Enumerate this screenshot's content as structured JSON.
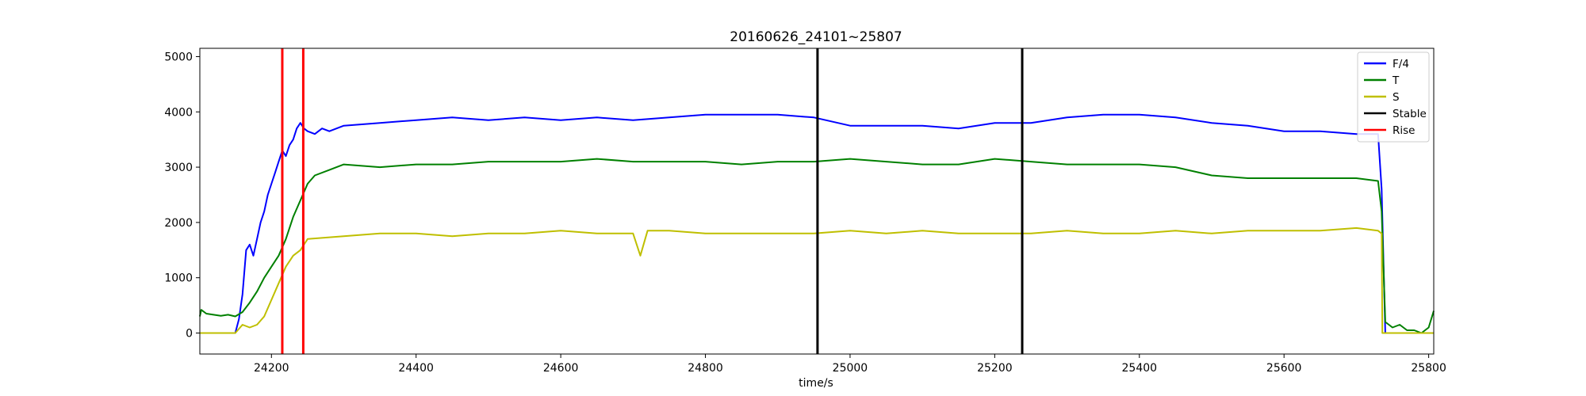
{
  "chart_data": {
    "type": "line",
    "title": "20160626_24101~25807",
    "xlabel": "time/s",
    "ylabel": "",
    "xlim": [
      24101,
      25807
    ],
    "ylim": [
      -380,
      5150
    ],
    "xticks": [
      24200,
      24400,
      24600,
      24800,
      25000,
      25200,
      25400,
      25600,
      25800
    ],
    "yticks": [
      0,
      1000,
      2000,
      3000,
      4000,
      5000
    ],
    "grid": false,
    "legend_position": "top-right",
    "series": [
      {
        "name": "F/4",
        "color": "#0000ff",
        "x": [
          24101,
          24110,
          24120,
          24130,
          24140,
          24150,
          24155,
          24160,
          24165,
          24170,
          24175,
          24180,
          24185,
          24190,
          24195,
          24200,
          24205,
          24210,
          24215,
          24220,
          24225,
          24230,
          24235,
          24240,
          24245,
          24250,
          24260,
          24270,
          24280,
          24300,
          24350,
          24400,
          24450,
          24500,
          24550,
          24600,
          24650,
          24700,
          24750,
          24800,
          24850,
          24900,
          24950,
          25000,
          25050,
          25100,
          25150,
          25200,
          25250,
          25300,
          25350,
          25400,
          25450,
          25500,
          25550,
          25600,
          25650,
          25700,
          25730,
          25735,
          25740
        ],
        "y": [
          0,
          0,
          0,
          0,
          0,
          0,
          250,
          700,
          1500,
          1600,
          1400,
          1700,
          2000,
          2200,
          2500,
          2700,
          2900,
          3100,
          3300,
          3200,
          3400,
          3500,
          3700,
          3800,
          3700,
          3650,
          3600,
          3700,
          3650,
          3750,
          3800,
          3850,
          3900,
          3850,
          3900,
          3850,
          3900,
          3850,
          3900,
          3950,
          3950,
          3950,
          3900,
          3750,
          3750,
          3750,
          3700,
          3800,
          3800,
          3900,
          3950,
          3950,
          3900,
          3800,
          3750,
          3650,
          3650,
          3600,
          3600,
          2600,
          0
        ]
      },
      {
        "name": "T",
        "color": "#008000",
        "x": [
          24101,
          24103,
          24110,
          24120,
          24130,
          24140,
          24150,
          24160,
          24170,
          24180,
          24190,
          24200,
          24210,
          24220,
          24230,
          24240,
          24250,
          24260,
          24280,
          24300,
          24350,
          24400,
          24450,
          24500,
          24550,
          24600,
          24650,
          24700,
          24750,
          24800,
          24850,
          24900,
          24950,
          25000,
          25050,
          25100,
          25150,
          25200,
          25250,
          25300,
          25350,
          25400,
          25450,
          25500,
          25550,
          25600,
          25650,
          25700,
          25730,
          25735,
          25740,
          25750,
          25760,
          25770,
          25780,
          25790,
          25800,
          25807
        ],
        "y": [
          300,
          420,
          350,
          330,
          310,
          330,
          300,
          380,
          550,
          750,
          1000,
          1200,
          1400,
          1700,
          2100,
          2400,
          2700,
          2850,
          2950,
          3050,
          3000,
          3050,
          3050,
          3100,
          3100,
          3100,
          3150,
          3100,
          3100,
          3100,
          3050,
          3100,
          3100,
          3150,
          3100,
          3050,
          3050,
          3150,
          3100,
          3050,
          3050,
          3050,
          3000,
          2850,
          2800,
          2800,
          2800,
          2800,
          2750,
          2200,
          200,
          100,
          150,
          50,
          50,
          0,
          100,
          400
        ]
      },
      {
        "name": "S",
        "color": "#bfbf00",
        "x": [
          24101,
          24150,
          24160,
          24170,
          24180,
          24190,
          24200,
          24210,
          24220,
          24230,
          24240,
          24250,
          24300,
          24350,
          24400,
          24450,
          24500,
          24550,
          24600,
          24650,
          24700,
          24710,
          24720,
          24750,
          24800,
          24850,
          24900,
          24950,
          25000,
          25050,
          25100,
          25150,
          25200,
          25250,
          25300,
          25350,
          25400,
          25450,
          25500,
          25550,
          25600,
          25650,
          25700,
          25730,
          25735,
          25736,
          25807
        ],
        "y": [
          0,
          0,
          150,
          100,
          150,
          300,
          600,
          900,
          1200,
          1400,
          1500,
          1700,
          1750,
          1800,
          1800,
          1750,
          1800,
          1800,
          1850,
          1800,
          1800,
          1400,
          1850,
          1850,
          1800,
          1800,
          1800,
          1800,
          1850,
          1800,
          1850,
          1800,
          1800,
          1800,
          1850,
          1800,
          1800,
          1850,
          1800,
          1850,
          1850,
          1850,
          1900,
          1850,
          1800,
          0,
          0
        ]
      }
    ],
    "vlines": [
      {
        "name": "Rise",
        "color": "#ff0000",
        "x": [
          24215,
          24244
        ]
      },
      {
        "name": "Stable",
        "color": "#000000",
        "x": [
          24955,
          25238
        ]
      }
    ],
    "legend": [
      {
        "label": "F/4",
        "color": "#0000ff"
      },
      {
        "label": "T",
        "color": "#008000"
      },
      {
        "label": "S",
        "color": "#bfbf00"
      },
      {
        "label": "Stable",
        "color": "#000000"
      },
      {
        "label": "Rise",
        "color": "#ff0000"
      }
    ]
  }
}
